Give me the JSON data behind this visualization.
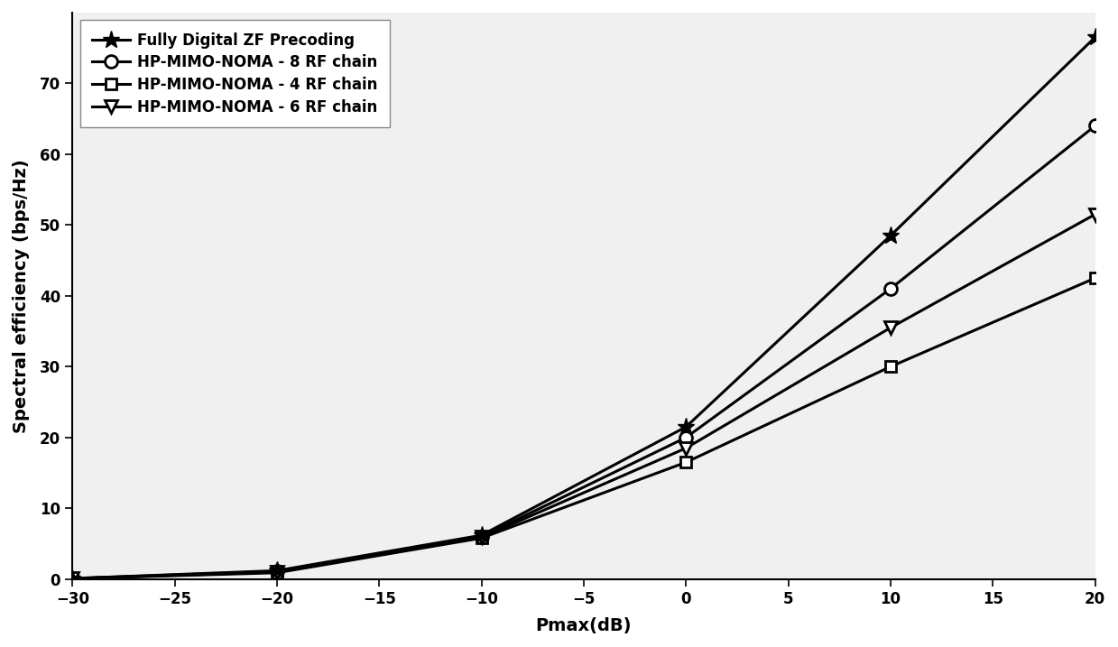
{
  "x": [
    -30,
    -20,
    -10,
    0,
    10,
    20
  ],
  "fully_digital_zf": [
    0.1,
    1.2,
    6.2,
    21.5,
    48.5,
    76.5
  ],
  "hp_8rf": [
    0.1,
    1.1,
    6.0,
    20.0,
    41.0,
    64.0
  ],
  "hp_4rf": [
    0.08,
    0.9,
    5.8,
    16.5,
    30.0,
    42.5
  ],
  "hp_6rf": [
    0.08,
    1.0,
    5.9,
    18.5,
    35.5,
    51.5
  ],
  "xlabel": "Pmax(dB)",
  "ylabel": "Spectral efficiency (bps/Hz)",
  "xlim": [
    -30,
    20
  ],
  "ylim": [
    0,
    80
  ],
  "xticks": [
    -30,
    -25,
    -20,
    -15,
    -10,
    -5,
    0,
    5,
    10,
    15,
    20
  ],
  "yticks": [
    0,
    10,
    20,
    30,
    40,
    50,
    60,
    70
  ],
  "legend_labels": [
    "Fully Digital ZF Precoding",
    "HP-MIMO-NOMA - 8 RF chain",
    "HP-MIMO-NOMA - 4 RF chain",
    "HP-MIMO-NOMA - 6 RF chain"
  ],
  "line_color": "#000000",
  "linewidth": 2.2,
  "axes_facecolor": "#f0f0f0",
  "figure_facecolor": "#ffffff",
  "markersize_star": 14,
  "markersize_circle": 10,
  "markersize_square": 9,
  "markersize_triangle": 10,
  "tick_labelsize": 12,
  "axis_labelsize": 14
}
